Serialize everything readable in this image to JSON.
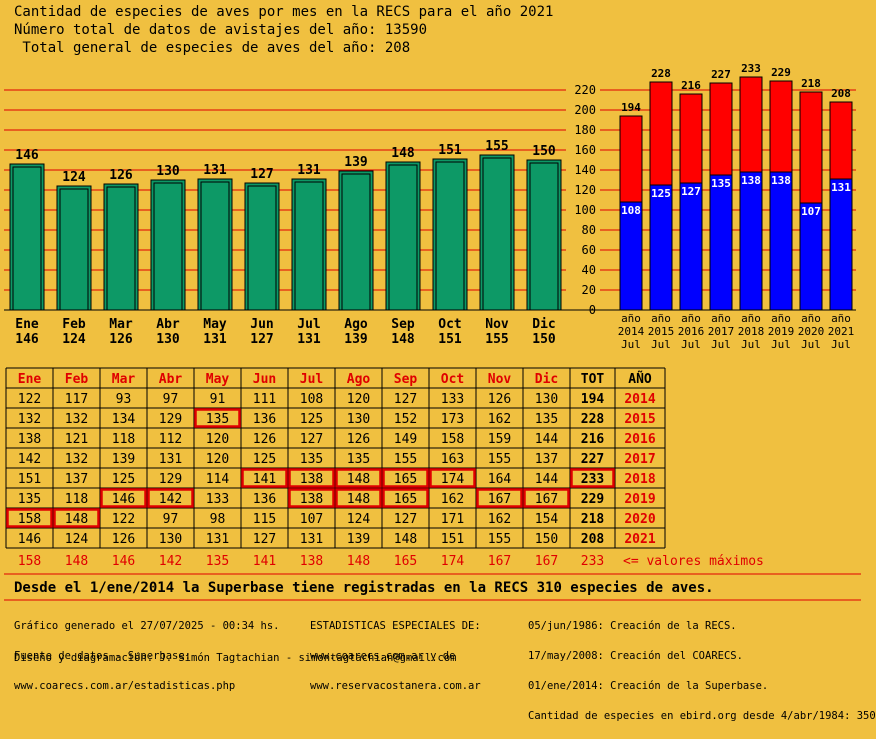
{
  "header": {
    "title": "Cantidad de especies de aves por mes en la RECS para el año 2021",
    "line2": "Número total de datos de avistajes del año: 13590",
    "line3": " Total general de especies de aves del año: 208"
  },
  "colors": {
    "background": "#f0c040",
    "monthly_bar": "#0d9966",
    "yearly_total": "#ff0000",
    "yearly_july": "#0000ff",
    "grid": "#e00000",
    "highlight": "#e00000"
  },
  "chart_data": [
    {
      "type": "bar",
      "categories": [
        "Ene",
        "Feb",
        "Mar",
        "Abr",
        "May",
        "Jun",
        "Jul",
        "Ago",
        "Sep",
        "Oct",
        "Nov",
        "Dic"
      ],
      "values": [
        146,
        124,
        126,
        130,
        131,
        127,
        131,
        139,
        148,
        151,
        155,
        150
      ],
      "ylim": [
        0,
        230
      ]
    },
    {
      "type": "bar",
      "categories": [
        "año 2014 Jul",
        "año 2015 Jul",
        "año 2016 Jul",
        "año 2017 Jul",
        "año 2018 Jul",
        "año 2019 Jul",
        "año 2020 Jul",
        "año 2021 Jul"
      ],
      "years": [
        "2014",
        "2015",
        "2016",
        "2017",
        "2018",
        "2019",
        "2020",
        "2021"
      ],
      "series": [
        {
          "values": [
            194,
            228,
            216,
            227,
            233,
            229,
            218,
            208
          ]
        },
        {
          "values": [
            108,
            125,
            127,
            135,
            138,
            138,
            107,
            131
          ]
        }
      ],
      "ylim": [
        0,
        230
      ],
      "yticks": [
        0,
        20,
        40,
        60,
        80,
        100,
        120,
        140,
        160,
        180,
        200,
        220
      ],
      "grid": true
    }
  ],
  "year_axis": {
    "word": "año",
    "month": "Jul"
  },
  "table": {
    "headers": [
      "Ene",
      "Feb",
      "Mar",
      "Abr",
      "May",
      "Jun",
      "Jul",
      "Ago",
      "Sep",
      "Oct",
      "Nov",
      "Dic",
      "TOT",
      "AÑO"
    ],
    "rows": [
      {
        "year": "2014",
        "values": [
          122,
          117,
          93,
          97,
          91,
          111,
          108,
          120,
          127,
          133,
          126,
          130
        ],
        "tot": 194
      },
      {
        "year": "2015",
        "values": [
          132,
          132,
          134,
          129,
          135,
          136,
          125,
          130,
          152,
          173,
          162,
          135
        ],
        "tot": 228
      },
      {
        "year": "2016",
        "values": [
          138,
          121,
          118,
          112,
          120,
          126,
          127,
          126,
          149,
          158,
          159,
          144
        ],
        "tot": 216
      },
      {
        "year": "2017",
        "values": [
          142,
          132,
          139,
          131,
          120,
          125,
          135,
          135,
          155,
          163,
          155,
          137
        ],
        "tot": 227
      },
      {
        "year": "2018",
        "values": [
          151,
          137,
          125,
          129,
          114,
          141,
          138,
          148,
          165,
          174,
          164,
          144
        ],
        "tot": 233
      },
      {
        "year": "2019",
        "values": [
          135,
          118,
          146,
          142,
          133,
          136,
          138,
          148,
          165,
          162,
          167,
          167
        ],
        "tot": 229
      },
      {
        "year": "2020",
        "values": [
          158,
          148,
          122,
          97,
          98,
          115,
          107,
          124,
          127,
          171,
          162,
          154
        ],
        "tot": 218
      },
      {
        "year": "2021",
        "values": [
          146,
          124,
          126,
          130,
          131,
          127,
          131,
          139,
          148,
          151,
          155,
          150
        ],
        "tot": 208
      }
    ],
    "max_values": [
      158,
      148,
      146,
      142,
      135,
      141,
      138,
      148,
      165,
      174,
      167,
      167
    ],
    "max_tot": 233,
    "max_label": "<= valores máximos"
  },
  "summary": "Desde el 1/ene/2014 la Superbase tiene registradas en la RECS 310 especies de aves.",
  "footer": {
    "col1": [
      "Gráfico generado el 27/07/2025 - 00:34 hs.",
      "Fuente de datos - Superbase:",
      "www.coarecs.com.ar/estadisticas.php"
    ],
    "col2": [
      "ESTADISTICAS ESPECIALES DE:",
      "www.coarecs.com.ar y de",
      "www.reservacostanera.com.ar"
    ],
    "col3": [
      "05/jun/1986: Creación de la RECS.",
      "17/may/2008: Creación del COARECS.",
      "01/ene/2014: Creación de la Superbase.",
      "Cantidad de especies en ebird.org desde 4/abr/1984: 350"
    ],
    "credit": "Diseño y diagramación: J. Simón Tagtachian - simontagtachian@gmail.com"
  }
}
